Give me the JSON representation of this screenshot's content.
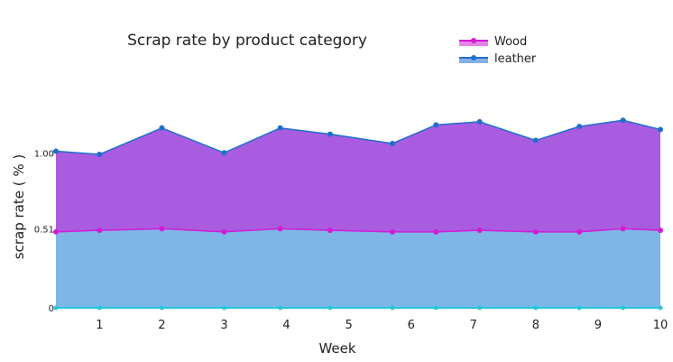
{
  "chart_data": {
    "type": "area",
    "stacked": true,
    "title": "Scrap rate by product category",
    "xlabel": "Week",
    "ylabel": "scrap rate ( % )",
    "xlim": [
      0.3,
      10
    ],
    "ylim": [
      0,
      1.45
    ],
    "x_ticks": [
      1,
      2,
      3,
      4,
      5,
      6,
      7,
      8,
      9,
      10
    ],
    "y_ticks": [
      0,
      0.51,
      1.0
    ],
    "y_tick_labels": [
      "0",
      "0.51",
      "1.00"
    ],
    "grid": false,
    "legend_position": "top-right",
    "x": [
      0.3,
      1,
      2,
      3,
      3.9,
      4.7,
      5.7,
      6.4,
      7.1,
      8.0,
      8.7,
      9.4,
      10
    ],
    "series": [
      {
        "name": "Wood",
        "color": "#d41bd4",
        "values": [
          0.49,
          0.5,
          0.51,
          0.49,
          0.51,
          0.5,
          0.49,
          0.49,
          0.5,
          0.49,
          0.49,
          0.51,
          0.5
        ]
      },
      {
        "name": "leather",
        "color": "#1f6fcc",
        "values": [
          0.52,
          0.49,
          0.65,
          0.51,
          0.65,
          0.62,
          0.57,
          0.69,
          0.7,
          0.59,
          0.68,
          0.7,
          0.65
        ]
      }
    ],
    "fill_colors": {
      "bottom": "#7eb6e8",
      "top": "#a95ce0"
    }
  }
}
